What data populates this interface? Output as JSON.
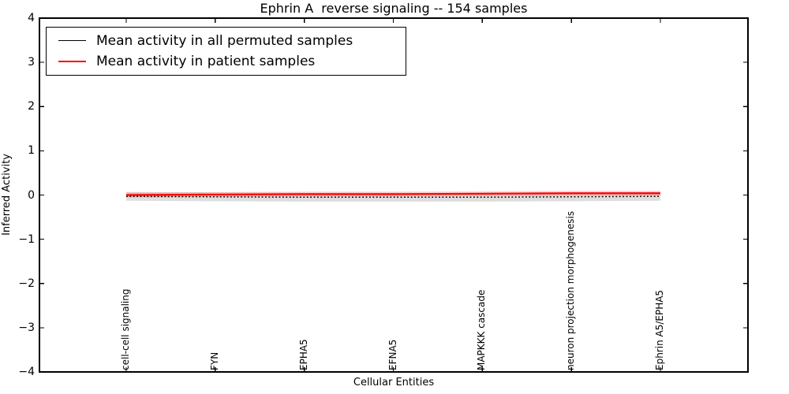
{
  "figure": {
    "title": "Ephrin A  reverse signaling -- 154 samples",
    "xlabel": "Cellular Entities",
    "ylabel": "Inferred Activity"
  },
  "legend": {
    "position": "upper left",
    "entries": [
      {
        "label": "Mean activity in all permuted samples",
        "color": "#000000"
      },
      {
        "label": "Mean activity in patient samples",
        "color": "#ff0000"
      }
    ]
  },
  "chart_data": {
    "type": "line",
    "title": "Ephrin A  reverse signaling -- 154 samples",
    "xlabel": "Cellular Entities",
    "ylabel": "Inferred Activity",
    "ylim": [
      -4,
      4
    ],
    "grid": false,
    "legend_position": "upper left",
    "yticks": [
      {
        "value": 4,
        "label": "4"
      },
      {
        "value": 3,
        "label": "3"
      },
      {
        "value": 2,
        "label": "2"
      },
      {
        "value": 1,
        "label": "1"
      },
      {
        "value": 0,
        "label": "0"
      },
      {
        "value": -1,
        "label": "−1"
      },
      {
        "value": -2,
        "label": "−2"
      },
      {
        "value": -3,
        "label": "−3"
      },
      {
        "value": -4,
        "label": "−4"
      }
    ],
    "categories": [
      "cell-cell signaling",
      "FYN",
      "EPHA5",
      "EFNA5",
      "MAPKKK cascade",
      "neuron projection morphogenesis",
      "Ephrin A5/EPHA5"
    ],
    "series": [
      {
        "name": "Mean activity in all permuted samples",
        "color": "#000000",
        "linestyle": "dotted",
        "dash": "1.8 2.6",
        "linewidth": 1.5,
        "values": [
          -0.03,
          -0.04,
          -0.05,
          -0.05,
          -0.05,
          -0.04,
          -0.03
        ],
        "band_halfwidth": 0.1,
        "band_color": "rgba(0,0,0,0.13)"
      },
      {
        "name": "Mean activity in patient samples",
        "color": "#ff0000",
        "linestyle": "solid",
        "dash": "",
        "linewidth": 2.2,
        "values": [
          0.0,
          0.01,
          0.02,
          0.02,
          0.03,
          0.04,
          0.04
        ],
        "band_halfwidth": 0.055,
        "band_color": "rgba(255,0,0,0.18)"
      }
    ]
  }
}
